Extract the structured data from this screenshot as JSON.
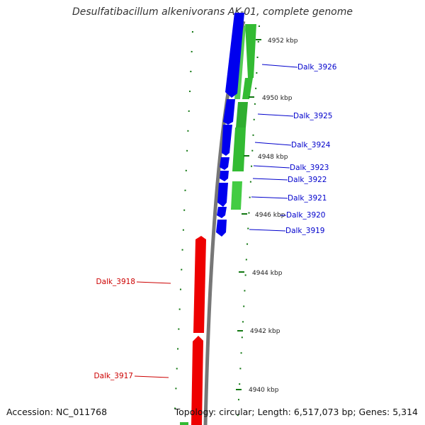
{
  "title": "Desulfatibacillum alkenivorans AK-01, complete genome",
  "footer": {
    "accession": "Accession: NC_011768",
    "topology": "Topology: circular; Length: 6,517,073 bp; Genes: 5,314"
  },
  "colors": {
    "forward": "#0000ee",
    "reverse": "#ee0000",
    "gc": "#33bb33",
    "backbone": "#777777",
    "tick": "#117711"
  },
  "ticks": [
    {
      "label": "4952 kbp"
    },
    {
      "label": "4950 kbp"
    },
    {
      "label": "4948 kbp"
    },
    {
      "label": "4946 kbp"
    },
    {
      "label": "4944 kbp"
    },
    {
      "label": "4942 kbp"
    },
    {
      "label": "4940 kbp"
    }
  ],
  "genes_right": [
    {
      "name": "Dalk_3926"
    },
    {
      "name": "Dalk_3925"
    },
    {
      "name": "Dalk_3924"
    },
    {
      "name": "Dalk_3923"
    },
    {
      "name": "Dalk_3922"
    },
    {
      "name": "Dalk_3921"
    },
    {
      "name": "Dalk_3920"
    },
    {
      "name": "Dalk_3919"
    }
  ],
  "genes_left": [
    {
      "name": "Dalk_3918"
    },
    {
      "name": "Dalk_3917"
    }
  ]
}
